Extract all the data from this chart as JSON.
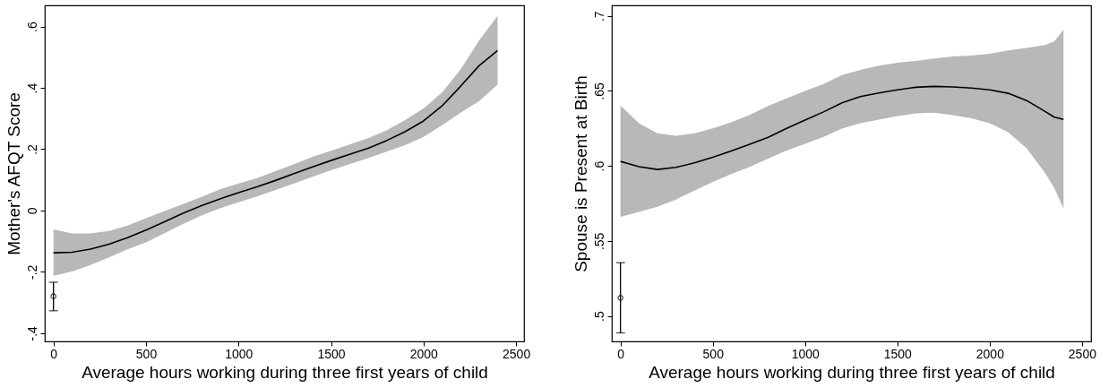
{
  "chart_data": [
    {
      "type": "line",
      "xlabel": "Average hours working during three first years of child",
      "ylabel": "Mother's AFQT Score",
      "xlim": [
        -47,
        2543
      ],
      "ylim": [
        -0.427,
        0.669
      ],
      "xticks": [
        0,
        500,
        1000,
        1500,
        2000,
        2500
      ],
      "yticks": [
        {
          "value": -0.4,
          "label": "-.4"
        },
        {
          "value": -0.2,
          "label": "-.2"
        },
        0,
        {
          "value": 0.2,
          "label": ".2"
        },
        {
          "value": 0.4,
          "label": ".4"
        },
        {
          "value": 0.6,
          "label": ".6"
        }
      ],
      "grid": false,
      "series": [
        {
          "color": "#000000",
          "x": [
            0,
            100,
            200,
            300,
            400,
            500,
            600,
            700,
            800,
            900,
            1000,
            1100,
            1200,
            1300,
            1400,
            1500,
            1600,
            1700,
            1800,
            1900,
            2000,
            2100,
            2200,
            2300,
            2400
          ],
          "values": [
            -0.138,
            -0.136,
            -0.126,
            -0.11,
            -0.089,
            -0.064,
            -0.037,
            -0.009,
            0.016,
            0.038,
            0.058,
            0.077,
            0.098,
            0.12,
            0.142,
            0.163,
            0.183,
            0.203,
            0.228,
            0.257,
            0.292,
            0.341,
            0.405,
            0.472,
            0.522
          ],
          "upper": [
            -0.062,
            -0.075,
            -0.075,
            -0.067,
            -0.049,
            -0.025,
            -0.002,
            0.021,
            0.044,
            0.069,
            0.088,
            0.106,
            0.128,
            0.151,
            0.175,
            0.195,
            0.215,
            0.236,
            0.261,
            0.295,
            0.333,
            0.385,
            0.46,
            0.554,
            0.635
          ],
          "lower": [
            -0.213,
            -0.199,
            -0.178,
            -0.153,
            -0.127,
            -0.104,
            -0.074,
            -0.044,
            -0.016,
            0.007,
            0.027,
            0.046,
            0.067,
            0.088,
            0.11,
            0.131,
            0.151,
            0.171,
            0.192,
            0.213,
            0.24,
            0.278,
            0.319,
            0.356,
            0.41
          ]
        },
        {
          "type": "scatter",
          "color": "#000000",
          "marker": "circle",
          "x": [
            0
          ],
          "values": [
            -0.28
          ],
          "errors": [
            [
              -0.327,
              -0.234
            ]
          ]
        }
      ]
    },
    {
      "type": "line",
      "xlabel": "Average hours working during three first years of child",
      "ylabel": "Spouse is Present at Birth",
      "xlim": [
        -47,
        2549
      ],
      "ylim": [
        0.483,
        0.707
      ],
      "xticks": [
        0,
        500,
        1000,
        1500,
        2000,
        2500
      ],
      "yticks": [
        {
          "value": 0.5,
          "label": ".5"
        },
        {
          "value": 0.55,
          "label": ".55"
        },
        {
          "value": 0.6,
          "label": ".6"
        },
        {
          "value": 0.65,
          "label": ".65"
        },
        {
          "value": 0.7,
          "label": ".7"
        }
      ],
      "grid": false,
      "series": [
        {
          "color": "#000000",
          "x": [
            0,
            100,
            200,
            300,
            400,
            500,
            600,
            700,
            800,
            900,
            1000,
            1100,
            1200,
            1300,
            1400,
            1500,
            1600,
            1700,
            1800,
            1900,
            2000,
            2100,
            2200,
            2300,
            2350,
            2400
          ],
          "values": [
            0.603,
            0.5995,
            0.5976,
            0.599,
            0.602,
            0.6057,
            0.61,
            0.6144,
            0.619,
            0.625,
            0.6306,
            0.636,
            0.642,
            0.6462,
            0.6486,
            0.6507,
            0.6524,
            0.653,
            0.6526,
            0.6519,
            0.6507,
            0.6484,
            0.6436,
            0.6363,
            0.6325,
            0.631
          ],
          "upper": [
            0.6403,
            0.6284,
            0.6218,
            0.6201,
            0.6218,
            0.625,
            0.629,
            0.634,
            0.6399,
            0.645,
            0.65,
            0.6546,
            0.6605,
            0.664,
            0.6669,
            0.6688,
            0.67,
            0.6716,
            0.673,
            0.6735,
            0.6747,
            0.677,
            0.6787,
            0.6806,
            0.683,
            0.6908
          ],
          "lower": [
            0.566,
            0.5693,
            0.5728,
            0.5776,
            0.5835,
            0.5894,
            0.5946,
            0.5993,
            0.6048,
            0.6102,
            0.6147,
            0.6194,
            0.6249,
            0.6284,
            0.6308,
            0.6332,
            0.635,
            0.6355,
            0.6339,
            0.6317,
            0.6284,
            0.6225,
            0.6118,
            0.5953,
            0.5853,
            0.5716
          ]
        },
        {
          "type": "scatter",
          "color": "#000000",
          "marker": "circle",
          "x": [
            0
          ],
          "values": [
            0.512
          ],
          "errors": [
            [
              0.4887,
              0.5355
            ]
          ]
        }
      ]
    }
  ]
}
